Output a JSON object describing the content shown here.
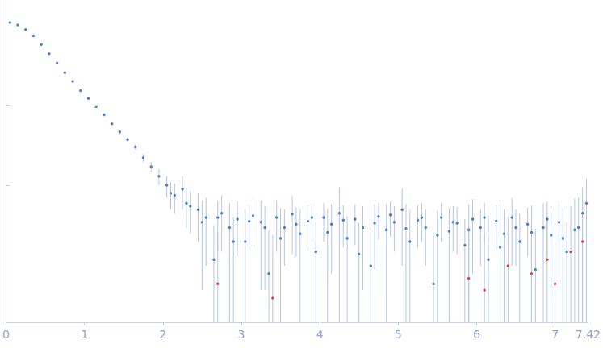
{
  "chart_data": {
    "type": "scatter",
    "xlim": [
      0,
      7.42
    ],
    "xticks": [
      0,
      1,
      2,
      3,
      4,
      5,
      6,
      7
    ],
    "ylim": [
      0.002,
      20
    ],
    "yticks": [
      0.1,
      1
    ],
    "log": "y",
    "grid": false,
    "tick_labels": "x",
    "series": [
      {
        "color": "#3a62bf",
        "marker": "circle",
        "x": [
          0.05,
          0.15,
          0.25,
          0.35,
          0.45,
          0.55,
          0.65,
          0.75,
          0.85,
          0.95,
          1.05,
          1.15,
          1.25,
          1.35,
          1.45,
          1.55,
          1.65,
          1.75,
          1.85,
          1.95,
          2.05,
          2.15,
          2.25,
          2.35,
          2.45,
          2.55,
          2.65,
          2.75,
          2.85,
          2.95,
          3.05,
          3.15,
          3.25,
          3.35,
          3.45,
          3.55,
          3.65,
          3.75,
          3.85,
          3.95,
          4.05,
          4.15,
          4.25,
          4.35,
          4.45,
          4.55,
          4.65,
          4.75,
          4.85,
          4.95,
          5.05,
          5.15,
          5.25,
          5.35,
          5.45,
          5.55,
          5.65,
          5.75,
          5.85,
          5.95,
          6.05,
          6.15,
          6.25,
          6.35,
          6.45,
          6.55,
          6.65,
          6.75,
          6.85,
          6.95,
          7.05,
          7.15,
          7.25,
          7.35,
          7.4,
          2.1,
          2.3,
          2.5,
          2.7,
          2.9,
          3.1,
          3.3,
          3.5,
          3.7,
          3.9,
          4.1,
          4.3,
          4.5,
          4.7,
          4.9,
          5.1,
          5.3,
          5.5,
          5.7,
          5.9,
          6.1,
          6.3,
          6.5,
          6.7,
          6.9,
          7.1,
          7.3
        ],
        "values": [
          10.5,
          9.8,
          8.6,
          7.2,
          5.6,
          4.3,
          3.3,
          2.5,
          1.95,
          1.5,
          1.2,
          0.95,
          0.75,
          0.58,
          0.46,
          0.37,
          0.3,
          0.22,
          0.17,
          0.13,
          0.1,
          0.075,
          0.09,
          0.055,
          0.05,
          0.04,
          0.012,
          0.045,
          0.03,
          0.038,
          0.02,
          0.042,
          0.035,
          0.008,
          0.04,
          0.03,
          0.044,
          0.025,
          0.036,
          0.015,
          0.04,
          0.033,
          0.045,
          0.022,
          0.038,
          0.03,
          0.01,
          0.041,
          0.028,
          0.035,
          0.05,
          0.02,
          0.037,
          0.03,
          0.006,
          0.04,
          0.027,
          0.034,
          0.018,
          0.038,
          0.03,
          0.012,
          0.036,
          0.025,
          0.04,
          0.02,
          0.033,
          0.009,
          0.03,
          0.024,
          0.035,
          0.015,
          0.028,
          0.045,
          0.06,
          0.08,
          0.06,
          0.035,
          0.04,
          0.02,
          0.036,
          0.03,
          0.022,
          0.033,
          0.04,
          0.026,
          0.037,
          0.014,
          0.034,
          0.043,
          0.029,
          0.04,
          0.024,
          0.035,
          0.028,
          0.04,
          0.017,
          0.03,
          0.026,
          0.038,
          0.022,
          0.03
        ],
        "errors": [
          0.2,
          0.15,
          0.12,
          0.1,
          0.08,
          0.06,
          0.05,
          0.04,
          0.035,
          0.03,
          0.03,
          0.025,
          0.025,
          0.02,
          0.02,
          0.02,
          0.02,
          0.025,
          0.025,
          0.03,
          0.03,
          0.03,
          0.04,
          0.03,
          0.03,
          0.03,
          0.02,
          0.03,
          0.03,
          0.025,
          0.03,
          0.025,
          0.03,
          0.02,
          0.025,
          0.02,
          0.03,
          0.025,
          0.02,
          0.02,
          0.02,
          0.025,
          0.05,
          0.02,
          0.02,
          0.025,
          0.02,
          0.02,
          0.03,
          0.02,
          0.04,
          0.03,
          0.02,
          0.02,
          0.02,
          0.02,
          0.025,
          0.02,
          0.02,
          0.03,
          0.02,
          0.03,
          0.02,
          0.025,
          0.03,
          0.025,
          0.02,
          0.02,
          0.03,
          0.025,
          0.03,
          0.02,
          0.04,
          0.05,
          0.06,
          0.03,
          0.03,
          0.03,
          0.025,
          0.02,
          0.02,
          0.025,
          0.03,
          0.02,
          0.02,
          0.025,
          0.02,
          0.02,
          0.025,
          0.02,
          0.03,
          0.02,
          0.025,
          0.02,
          0.03,
          0.02,
          0.04,
          0.02,
          0.03,
          0.025,
          0.03,
          0.04
        ]
      },
      {
        "color": "#e0201b",
        "marker": "circle",
        "x": [
          2.7,
          3.4,
          5.9,
          6.1,
          6.4,
          6.7,
          6.9,
          7.0,
          7.2,
          7.35
        ],
        "values": [
          0.006,
          0.004,
          0.007,
          0.005,
          0.01,
          0.008,
          0.012,
          0.006,
          0.015,
          0.02
        ],
        "errors": [
          0.02,
          0.02,
          0.025,
          0.02,
          0.03,
          0.025,
          0.03,
          0.03,
          0.04,
          0.05
        ]
      }
    ]
  }
}
